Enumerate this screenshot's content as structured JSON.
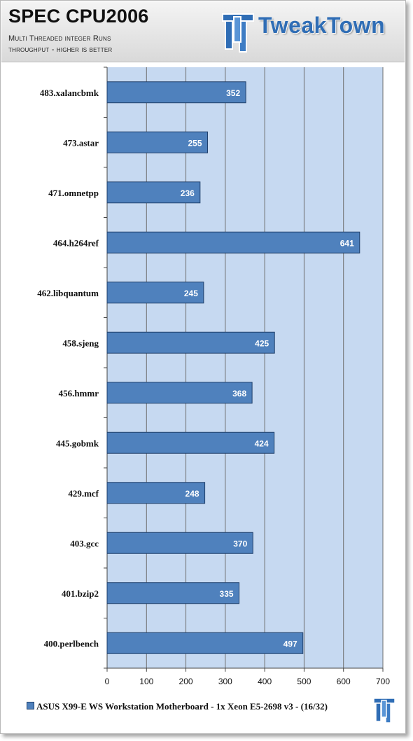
{
  "header": {
    "title": "SPEC CPU2006",
    "subtitle_line1": "Multi Threaded integer Runs",
    "subtitle_line2": "throughput - higher is better",
    "logo_text": "TweakTown"
  },
  "colors": {
    "bar_fill": "#4f81bd",
    "bar_border": "#1f3f6a",
    "plot_background": "#c6d9f1",
    "gridline": "#6f6f6f",
    "logo_blue": "#2f6db5"
  },
  "chart_data": {
    "type": "bar",
    "orientation": "horizontal",
    "categories": [
      "483.xalancbmk",
      "473.astar",
      "471.omnetpp",
      "464.h264ref",
      "462.libquantum",
      "458.sjeng",
      "456.hmmr",
      "445.gobmk",
      "429.mcf",
      "403.gcc",
      "401.bzip2",
      "400.perlbench"
    ],
    "series": [
      {
        "name": "ASUS X99-E WS Workstation Motherboard - 1x Xeon E5-2698 v3 - (16/32)",
        "values": [
          352,
          255,
          236,
          641,
          245,
          425,
          368,
          424,
          248,
          370,
          335,
          497
        ]
      }
    ],
    "xlim": [
      0,
      700
    ],
    "xticks": [
      0,
      100,
      200,
      300,
      400,
      500,
      600,
      700
    ],
    "grid": true,
    "data_labels": true,
    "legend_position": "bottom"
  }
}
